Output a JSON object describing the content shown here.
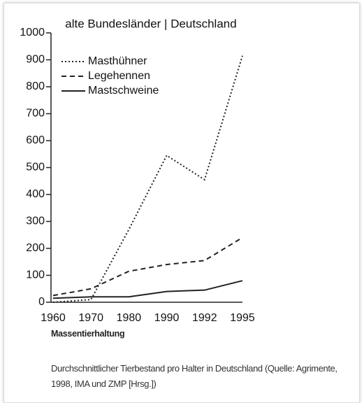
{
  "chart_data": {
    "type": "line",
    "title": "alte Bundesländer | Deutschland",
    "categories": [
      "1960",
      "1970",
      "1980",
      "1990",
      "1992",
      "1995"
    ],
    "series": [
      {
        "name": "Masthühner",
        "color": "#222222",
        "style": "dotted",
        "values": [
          0,
          10,
          270,
          545,
          455,
          915
        ]
      },
      {
        "name": "Legehennen",
        "color": "#222222",
        "style": "dashed",
        "values": [
          25,
          50,
          115,
          140,
          155,
          240
        ]
      },
      {
        "name": "Mastschweine",
        "color": "#222222",
        "style": "solid",
        "values": [
          15,
          20,
          20,
          40,
          45,
          80
        ]
      }
    ],
    "ylim": [
      0,
      1000
    ],
    "yticks": [
      0,
      100,
      200,
      300,
      400,
      500,
      600,
      700,
      800,
      900,
      1000
    ],
    "legend": "top-left",
    "grid": false
  },
  "figure_label": "Massentierhaltung",
  "caption": "Durchschnittlicher Tierbestand pro Halter in Deutschland (Quelle: Agrimente, 1998, IMA und ZMP [Hrsg.])"
}
